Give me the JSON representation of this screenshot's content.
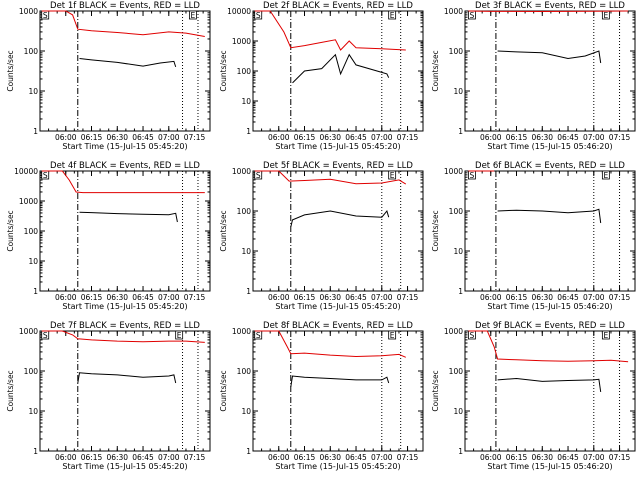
{
  "colors": {
    "events": "#000000",
    "lld": "#e00000",
    "background": "#ffffff"
  },
  "chart_data": [
    {
      "type": "line",
      "title": "Det 1f BLACK = Events, RED = LLD",
      "xlabel": "Start Time (15-Jul-15 05:45:20)",
      "ylabel": "Counts/sec",
      "yscale": "log",
      "ylim": [
        1,
        1000
      ],
      "x_ticks": [
        "06:00",
        "06:15",
        "06:30",
        "06:45",
        "07:00",
        "07:15"
      ],
      "y_ticks": [
        "1",
        "10",
        "100",
        "1000"
      ],
      "markers": [
        {
          "label": "S",
          "x": "05:46"
        },
        {
          "label": "E",
          "x": "07:12"
        }
      ],
      "vlines_dashed": [
        "06:07"
      ],
      "vlines_dotted": [
        "07:08",
        "07:17"
      ],
      "series": [
        {
          "color": "lld",
          "x": [
            "05:46",
            "06:00",
            "06:04",
            "06:07",
            "06:15",
            "06:30",
            "06:45",
            "07:00",
            "07:10",
            "07:21"
          ],
          "y": [
            1000,
            1000,
            800,
            350,
            320,
            290,
            255,
            300,
            280,
            230
          ]
        },
        {
          "color": "events",
          "x": [
            "06:08",
            "06:15",
            "06:30",
            "06:45",
            "06:55",
            "07:03",
            "07:04"
          ],
          "y": [
            65,
            60,
            52,
            42,
            50,
            55,
            40
          ]
        }
      ]
    },
    {
      "type": "line",
      "title": "Det 2f BLACK = Events, RED = LLD",
      "xlabel": "Start Time (15-Jul-15 05:45:20)",
      "ylabel": "Counts/sec",
      "yscale": "log",
      "ylim": [
        1,
        10000
      ],
      "x_ticks": [
        "06:00",
        "06:15",
        "06:30",
        "06:45",
        "07:00",
        "07:15"
      ],
      "y_ticks": [
        "1",
        "10",
        "100",
        "1000",
        "10000"
      ],
      "markers": [
        {
          "label": "S",
          "x": "05:46"
        },
        {
          "label": "E",
          "x": "07:04"
        }
      ],
      "vlines_dashed": [
        "06:07"
      ],
      "vlines_dotted": [
        "07:00",
        "07:11"
      ],
      "series": [
        {
          "color": "lld",
          "x": [
            "05:46",
            "05:55",
            "06:03",
            "06:07",
            "06:15",
            "06:25",
            "06:33",
            "06:36",
            "06:41",
            "06:45",
            "07:00",
            "07:14"
          ],
          "y": [
            10000,
            10000,
            2000,
            600,
            700,
            900,
            1100,
            500,
            1000,
            600,
            550,
            500
          ]
        },
        {
          "color": "events",
          "x": [
            "06:08",
            "06:15",
            "06:25",
            "06:33",
            "06:36",
            "06:41",
            "06:45",
            "07:00",
            "07:03",
            "07:04"
          ],
          "y": [
            40,
            100,
            120,
            350,
            80,
            350,
            160,
            90,
            80,
            60
          ]
        }
      ]
    },
    {
      "type": "line",
      "title": "Det 3f BLACK = Events, RED = LLD",
      "xlabel": "Start Time (15-Jul-15 05:46:20)",
      "ylabel": "Counts/sec",
      "yscale": "log",
      "ylim": [
        1,
        1000
      ],
      "x_ticks": [
        "06:00",
        "06:15",
        "06:30",
        "06:45",
        "07:00",
        "07:15"
      ],
      "y_ticks": [
        "1",
        "10",
        "100",
        "1000"
      ],
      "markers": [
        {
          "label": "S",
          "x": "05:47"
        },
        {
          "label": "E",
          "x": "07:05"
        }
      ],
      "vlines_dashed": [
        "06:03"
      ],
      "vlines_dotted": [
        "07:00",
        "07:15"
      ],
      "series": [
        {
          "color": "lld",
          "x": [
            "05:47",
            "06:00",
            "06:30",
            "07:00",
            "07:20"
          ],
          "y": [
            1000,
            980,
            970,
            990,
            1000
          ]
        },
        {
          "color": "events",
          "x": [
            "06:04",
            "06:15",
            "06:30",
            "06:45",
            "06:55",
            "07:03",
            "07:04"
          ],
          "y": [
            100,
            95,
            90,
            65,
            75,
            100,
            50
          ]
        }
      ]
    },
    {
      "type": "line",
      "title": "Det 4f BLACK = Events, RED = LLD",
      "xlabel": "Start Time (15-Jul-15 05:45:20)",
      "ylabel": "Counts/sec",
      "yscale": "log",
      "ylim": [
        1,
        10000
      ],
      "x_ticks": [
        "06:00",
        "06:15",
        "06:30",
        "06:45",
        "07:00",
        "07:15"
      ],
      "y_ticks": [
        "1",
        "10",
        "100",
        "1000",
        "10000"
      ],
      "markers": [
        {
          "label": "S",
          "x": "05:46"
        }
      ],
      "vlines_dashed": [
        "06:07"
      ],
      "vlines_dotted": [
        "07:08",
        "07:17"
      ],
      "series": [
        {
          "color": "lld",
          "x": [
            "05:46",
            "05:58",
            "06:02",
            "06:06",
            "06:10",
            "07:21"
          ],
          "y": [
            10000,
            10000,
            5000,
            2000,
            1900,
            1900
          ]
        },
        {
          "color": "events",
          "x": [
            "06:08",
            "06:15",
            "06:30",
            "06:45",
            "07:00",
            "07:04",
            "07:05"
          ],
          "y": [
            420,
            410,
            380,
            360,
            350,
            390,
            200
          ]
        }
      ]
    },
    {
      "type": "line",
      "title": "Det 5f BLACK = Events, RED = LLD",
      "xlabel": "Start Time (15-Jul-15 05:45:20)",
      "ylabel": "Counts/sec",
      "yscale": "log",
      "ylim": [
        1,
        1000
      ],
      "x_ticks": [
        "06:00",
        "06:15",
        "06:30",
        "06:45",
        "07:00",
        "07:15"
      ],
      "y_ticks": [
        "1",
        "10",
        "100",
        "1000"
      ],
      "markers": [
        {
          "label": "S",
          "x": "05:46"
        },
        {
          "label": "E",
          "x": "07:04"
        }
      ],
      "vlines_dashed": [
        "06:07"
      ],
      "vlines_dotted": [
        "07:00",
        "07:11"
      ],
      "series": [
        {
          "color": "lld",
          "x": [
            "05:46",
            "06:00",
            "06:06",
            "06:15",
            "06:30",
            "06:45",
            "07:00",
            "07:10",
            "07:14"
          ],
          "y": [
            1000,
            1000,
            560,
            580,
            620,
            480,
            500,
            600,
            470
          ]
        },
        {
          "color": "events",
          "x": [
            "06:07",
            "06:08",
            "06:15",
            "06:30",
            "06:45",
            "07:00",
            "07:03",
            "07:04"
          ],
          "y": [
            40,
            60,
            80,
            100,
            75,
            70,
            100,
            70
          ]
        }
      ]
    },
    {
      "type": "line",
      "title": "Det 6f BLACK = Events, RED = LLD",
      "xlabel": "Start Time (15-Jul-15 05:46:20)",
      "ylabel": "Counts/sec",
      "yscale": "log",
      "ylim": [
        1,
        1000
      ],
      "x_ticks": [
        "06:00",
        "06:15",
        "06:30",
        "06:45",
        "07:00",
        "07:15"
      ],
      "y_ticks": [
        "1",
        "10",
        "100",
        "1000"
      ],
      "markers": [
        {
          "label": "S",
          "x": "05:47"
        },
        {
          "label": "E",
          "x": "07:05"
        }
      ],
      "vlines_dashed": [
        "06:03"
      ],
      "vlines_dotted": [
        "07:00",
        "07:15"
      ],
      "series": [
        {
          "color": "lld",
          "x": [
            "05:47",
            "06:02"
          ],
          "y": [
            1000,
            1000
          ]
        },
        {
          "color": "events",
          "x": [
            "06:04",
            "06:15",
            "06:30",
            "06:45",
            "07:00",
            "07:03",
            "07:04"
          ],
          "y": [
            100,
            105,
            100,
            90,
            100,
            110,
            50
          ]
        }
      ]
    },
    {
      "type": "line",
      "title": "Det 7f BLACK = Events, RED = LLD",
      "xlabel": "Start Time (15-Jul-15 05:45:20)",
      "ylabel": "Counts/sec",
      "yscale": "log",
      "ylim": [
        1,
        1000
      ],
      "x_ticks": [
        "06:00",
        "06:15",
        "06:30",
        "06:45",
        "07:00",
        "07:15"
      ],
      "y_ticks": [
        "1",
        "10",
        "100",
        "1000"
      ],
      "markers": [
        {
          "label": "S",
          "x": "05:46"
        },
        {
          "label": "E",
          "x": "07:04"
        }
      ],
      "vlines_dashed": [
        "06:07"
      ],
      "vlines_dotted": [
        "07:08",
        "07:17"
      ],
      "series": [
        {
          "color": "lld",
          "x": [
            "05:46",
            "05:58",
            "06:04",
            "06:07",
            "06:15",
            "06:30",
            "06:45",
            "07:00",
            "07:10",
            "07:21"
          ],
          "y": [
            1000,
            1000,
            800,
            640,
            600,
            560,
            540,
            560,
            560,
            520
          ]
        },
        {
          "color": "events",
          "x": [
            "06:07",
            "06:08",
            "06:15",
            "06:30",
            "06:45",
            "07:00",
            "07:03",
            "07:04"
          ],
          "y": [
            50,
            90,
            85,
            80,
            70,
            75,
            80,
            50
          ]
        }
      ]
    },
    {
      "type": "line",
      "title": "Det 8f BLACK = Events, RED = LLD",
      "xlabel": "Start Time (15-Jul-15 05:45:20)",
      "ylabel": "Counts/sec",
      "yscale": "log",
      "ylim": [
        1,
        1000
      ],
      "x_ticks": [
        "06:00",
        "06:15",
        "06:30",
        "06:45",
        "07:00",
        "07:15"
      ],
      "y_ticks": [
        "1",
        "10",
        "100",
        "1000"
      ],
      "markers": [
        {
          "label": "S",
          "x": "05:46"
        },
        {
          "label": "E",
          "x": "07:04"
        }
      ],
      "vlines_dashed": [
        "06:07"
      ],
      "vlines_dotted": [
        "07:00",
        "07:11"
      ],
      "series": [
        {
          "color": "lld",
          "x": [
            "05:46",
            "06:00",
            "06:05",
            "06:07",
            "06:15",
            "06:30",
            "06:45",
            "07:00",
            "07:10",
            "07:14"
          ],
          "y": [
            1000,
            1000,
            400,
            270,
            280,
            250,
            230,
            240,
            260,
            220
          ]
        },
        {
          "color": "events",
          "x": [
            "06:07",
            "06:08",
            "06:15",
            "06:30",
            "06:45",
            "07:00",
            "07:03",
            "07:04"
          ],
          "y": [
            40,
            75,
            70,
            65,
            60,
            60,
            70,
            50
          ]
        }
      ]
    },
    {
      "type": "line",
      "title": "Det 9f BLACK = Events, RED = LLD",
      "xlabel": "Start Time (15-Jul-15 05:46:20)",
      "ylabel": "Counts/sec",
      "yscale": "log",
      "ylim": [
        1,
        1000
      ],
      "x_ticks": [
        "06:00",
        "06:15",
        "06:30",
        "06:45",
        "07:00",
        "07:15"
      ],
      "y_ticks": [
        "1",
        "10",
        "100",
        "1000"
      ],
      "markers": [
        {
          "label": "S",
          "x": "05:47"
        },
        {
          "label": "E",
          "x": "07:05"
        }
      ],
      "vlines_dashed": [
        "06:03"
      ],
      "vlines_dotted": [
        "07:00",
        "07:15"
      ],
      "series": [
        {
          "color": "lld",
          "x": [
            "05:47",
            "05:58",
            "06:02",
            "06:04",
            "06:15",
            "06:30",
            "06:45",
            "07:00",
            "07:10",
            "07:20"
          ],
          "y": [
            1000,
            1000,
            400,
            200,
            190,
            180,
            175,
            180,
            185,
            170
          ]
        },
        {
          "color": "events",
          "x": [
            "06:04",
            "06:15",
            "06:30",
            "06:45",
            "07:00",
            "07:03",
            "07:04"
          ],
          "y": [
            60,
            65,
            55,
            58,
            60,
            62,
            30
          ]
        }
      ]
    }
  ]
}
